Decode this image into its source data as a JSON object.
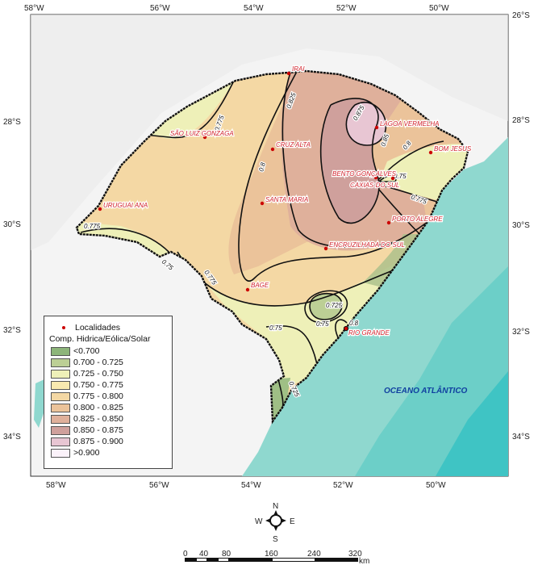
{
  "axes": {
    "lon_top": [
      "58°W",
      "56°W",
      "54°W",
      "52°W",
      "50°W"
    ],
    "lon_bottom": [
      "58°W",
      "56°W",
      "54°W",
      "52°W",
      "50°W"
    ],
    "lat_left": [
      "28°S",
      "30°S",
      "32°S",
      "34°S"
    ],
    "lat_right": [
      "26°S",
      "28°S",
      "30°S",
      "32°S",
      "34°S"
    ]
  },
  "cities": [
    "IRAI",
    "LAGOA VERMELHA",
    "SÃO LUIZ GONZAGA",
    "CRUZ ALTA",
    "BOM JESUS",
    "BENTO GONÇALVES",
    "CAXIAS DO SUL",
    "URUGUAI ANA",
    "SANTA MARIA",
    "PORTO ALEGRE",
    "ENCRUZILHADA DO SUL",
    "BAGE",
    "RIO GRANDE"
  ],
  "contour_labels": [
    "0.825",
    "0.875",
    "0.85",
    "0.8",
    "0.75",
    "0.775",
    "0.775",
    "0.8",
    "0.775",
    "0.75",
    "0.775",
    "0.725",
    "0.75",
    "0.8",
    "0.75",
    "0.725"
  ],
  "ocean_label": "OCEANO ATLÂNTICO",
  "legend": {
    "locality_label": "Localidades",
    "title": "Comp. Hidrica/Eólica/Solar",
    "classes": [
      {
        "label": "<0.700",
        "color": "#8db57a"
      },
      {
        "label": "0.700 - 0.725",
        "color": "#bccf95"
      },
      {
        "label": "0.725 - 0.750",
        "color": "#eef0b8"
      },
      {
        "label": "0.750 - 0.775",
        "color": "#f8e9b0"
      },
      {
        "label": "0.775 - 0.800",
        "color": "#f4d8a4"
      },
      {
        "label": "0.800 - 0.825",
        "color": "#ebc39a"
      },
      {
        "label": "0.825 - 0.850",
        "color": "#dfb09b"
      },
      {
        "label": "0.850 - 0.875",
        "color": "#cfa09c"
      },
      {
        "label": "0.875 - 0.900",
        "color": "#e8c6d3"
      },
      {
        "label": ">0.900",
        "color": "#fbf2fa"
      }
    ]
  },
  "compass": {
    "n": "N",
    "s": "S",
    "e": "E",
    "w": "W"
  },
  "scale": {
    "ticks": [
      "0",
      "40",
      "80",
      "160",
      "240",
      "320"
    ],
    "unit": "km"
  },
  "colors": {
    "ocean": "#8fd8cf",
    "ocean_deep": "#4cc7c4",
    "city": "#c00000"
  }
}
